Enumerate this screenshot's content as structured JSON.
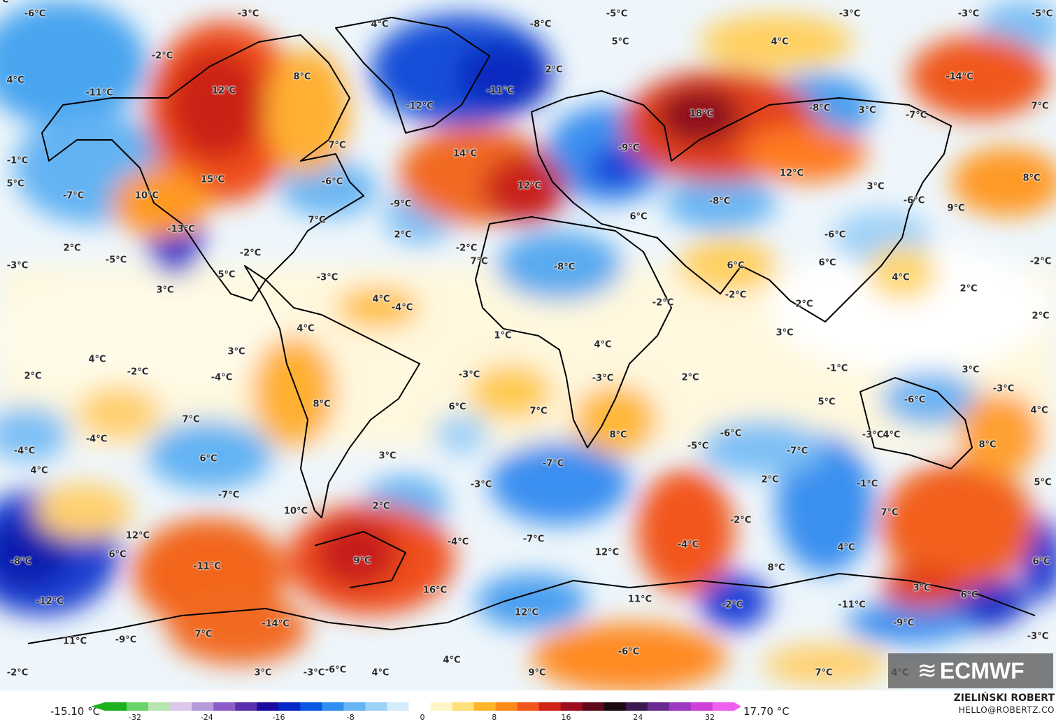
{
  "map": {
    "labels": [
      "-6°C",
      "-3°C",
      "4°C",
      "-8°C",
      "-5°C",
      "-3°C",
      "-3°C",
      "-5°C",
      "-2°C",
      "5°C",
      "4°C",
      "4°C",
      "-11°C",
      "12°C",
      "8°C",
      "2°C",
      "-12°C",
      "-11°C",
      "18°C",
      "-8°C",
      "3°C",
      "-7°C",
      "-14°C",
      "7°C",
      "-1°C",
      "7°C",
      "14°C",
      "-9°C",
      "12°C",
      "8°C",
      "5°C",
      "-7°C",
      "10°C",
      "15°C",
      "-6°C",
      "-9°C",
      "12°C",
      "-8°C",
      "3°C",
      "-6°C",
      "9°C",
      "-13°C",
      "7°C",
      "2°C",
      "6°C",
      "-6°C",
      "2°C",
      "-2°C",
      "-2°C",
      "-5°C",
      "-3°C",
      "7°C",
      "-8°C",
      "6°C",
      "6°C",
      "4°C",
      "-2°C",
      "5°C",
      "-3°C",
      "2°C",
      "3°C",
      "4°C",
      "-4°C",
      "-2°C",
      "2°C",
      "-2°C",
      "2°C",
      "4°C",
      "1°C",
      "3°C",
      "2°C",
      "3°C",
      "4°C",
      "-2°C",
      "-4°C",
      "-3°C",
      "4°C",
      "-3°C",
      "-1°C",
      "3°C",
      "2°C",
      "8°C",
      "6°C",
      "7°C",
      "5°C",
      "-6°C",
      "-3°C",
      "4°C",
      "7°C",
      "-4°C",
      "-4°C",
      "3°C",
      "8°C",
      "-3°C",
      "6°C",
      "-6°C",
      "-7°C",
      "4°C",
      "8°C",
      "4°C",
      "-5°C",
      "-7°C",
      "2°C",
      "2°C",
      "-3°C",
      "-1°C",
      "5°C",
      "-7°C",
      "10°C",
      "-2°C",
      "7°C",
      "12°C",
      "6°C",
      "-4°C",
      "-7°C",
      "-4°C",
      "12°C",
      "4°C",
      "-8°C",
      "-11°C",
      "9°C",
      "16°C",
      "8°C",
      "6°C",
      "-12°C",
      "3°C",
      "11°C",
      "-2°C",
      "-11°C",
      "6°C",
      "-14°C",
      "12°C",
      "-9°C",
      "-9°C",
      "7°C",
      "11°C",
      "-3°C",
      "-2°C",
      "3°C",
      "-3°C",
      "4°C",
      "-6°C",
      "4°C",
      "-6°C",
      "9°C",
      "7°C",
      "4°C",
      "7°C"
    ]
  },
  "logo": {
    "text": "ECMWF",
    "mark": "≋"
  },
  "legend": {
    "min_label": "-15.10 °C",
    "max_label": "17.70 °C",
    "ticks": [
      "-32",
      "-24",
      "-16",
      "-8",
      "0",
      "8",
      "16",
      "24",
      "32"
    ],
    "colors": [
      "#1cb01c",
      "#6ad46a",
      "#b7e6b0",
      "#dcc8ea",
      "#b59ad8",
      "#8c5cc8",
      "#5a2fae",
      "#1a0d9e",
      "#0828c8",
      "#0a58e0",
      "#2f8ff0",
      "#65b4f3",
      "#9ed1f8",
      "#d2ecfb",
      "#ffffff",
      "#fff6c8",
      "#ffe07a",
      "#ffb52a",
      "#ff8a18",
      "#f2561c",
      "#d02318",
      "#9e0d1e",
      "#5e0a1a",
      "#1a0a10",
      "#3c1a50",
      "#6a2a90",
      "#9e38c0",
      "#d040d8",
      "#f060f0"
    ]
  },
  "footer": {
    "author": "ZIELIŃSKI ROBERT",
    "email": "HELLO@ROBERTZ.CO"
  }
}
